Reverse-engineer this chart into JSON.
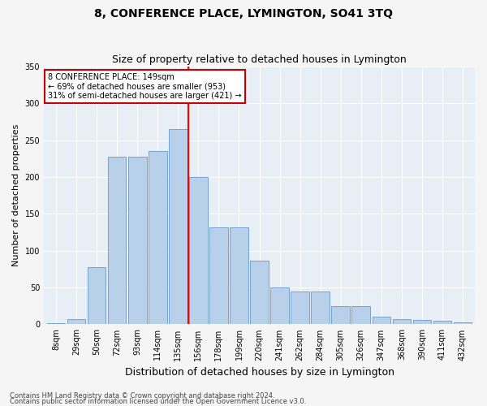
{
  "title": "8, CONFERENCE PLACE, LYMINGTON, SO41 3TQ",
  "subtitle": "Size of property relative to detached houses in Lymington",
  "xlabel": "Distribution of detached houses by size in Lymington",
  "ylabel": "Number of detached properties",
  "categories": [
    "8sqm",
    "29sqm",
    "50sqm",
    "72sqm",
    "93sqm",
    "114sqm",
    "135sqm",
    "156sqm",
    "178sqm",
    "199sqm",
    "220sqm",
    "241sqm",
    "262sqm",
    "284sqm",
    "305sqm",
    "326sqm",
    "347sqm",
    "368sqm",
    "390sqm",
    "411sqm",
    "432sqm"
  ],
  "values": [
    2,
    7,
    78,
    228,
    228,
    235,
    265,
    200,
    132,
    132,
    87,
    50,
    45,
    45,
    25,
    25,
    10,
    7,
    6,
    5,
    3
  ],
  "bar_color": "#b8d0ea",
  "bar_edge_color": "#6699cc",
  "red_line_index": 7,
  "annotation_line1": "8 CONFERENCE PLACE: 149sqm",
  "annotation_line2": "← 69% of detached houses are smaller (953)",
  "annotation_line3": "31% of semi-detached houses are larger (421) →",
  "annotation_box_color": "#ffffff",
  "annotation_box_edge": "#cc0000",
  "ylim": [
    0,
    350
  ],
  "yticks": [
    0,
    50,
    100,
    150,
    200,
    250,
    300,
    350
  ],
  "footer_line1": "Contains HM Land Registry data © Crown copyright and database right 2024.",
  "footer_line2": "Contains public sector information licensed under the Open Government Licence v3.0.",
  "plot_bg_color": "#e8eef5",
  "fig_bg_color": "#f5f5f5",
  "grid_color": "#ffffff",
  "title_fontsize": 10,
  "subtitle_fontsize": 9,
  "ylabel_fontsize": 8,
  "xlabel_fontsize": 9,
  "tick_fontsize": 7,
  "footer_fontsize": 6
}
